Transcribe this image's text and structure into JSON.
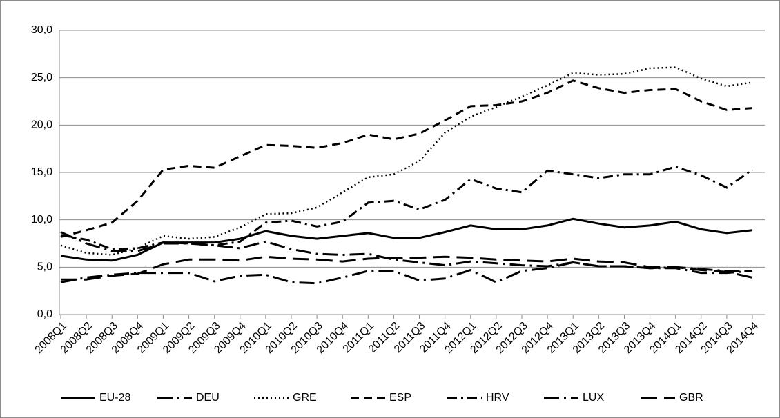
{
  "chart_data": {
    "type": "line",
    "categories": [
      "2008Q1",
      "2008Q2",
      "2008Q3",
      "2008Q4",
      "2009Q1",
      "2009Q2",
      "2009Q3",
      "2009Q4",
      "2010Q1",
      "2010Q2",
      "2010Q3",
      "2010Q4",
      "2011Q1",
      "2011Q2",
      "2011Q3",
      "2011Q4",
      "2012Q1",
      "2012Q2",
      "2012Q3",
      "2012Q4",
      "2013Q1",
      "2013Q2",
      "2013Q3",
      "2013Q4",
      "2014Q1",
      "2014Q2",
      "2014Q3",
      "2014Q4"
    ],
    "series": [
      {
        "name": "EU-28",
        "color": "#000000",
        "dash": "solid",
        "values": [
          6.2,
          5.8,
          5.7,
          6.3,
          7.6,
          7.6,
          7.6,
          8.0,
          8.8,
          8.3,
          8.0,
          8.3,
          8.6,
          8.1,
          8.1,
          8.7,
          9.4,
          9.0,
          9.0,
          9.4,
          10.1,
          9.6,
          9.2,
          9.4,
          9.8,
          9.0,
          8.6,
          8.9
        ]
      },
      {
        "name": "DEU",
        "color": "#000000",
        "dash": "long-dash-dot",
        "values": [
          8.7,
          7.5,
          6.7,
          6.7,
          7.5,
          7.5,
          7.3,
          7.0,
          7.7,
          6.9,
          6.4,
          6.3,
          6.4,
          5.8,
          5.5,
          5.2,
          5.6,
          5.4,
          5.2,
          5.1,
          5.5,
          5.1,
          5.1,
          4.9,
          5.0,
          4.8,
          4.6,
          4.6
        ]
      },
      {
        "name": "GRE",
        "color": "#000000",
        "dash": "dot",
        "values": [
          7.3,
          6.5,
          6.3,
          7.0,
          8.3,
          8.0,
          8.2,
          9.2,
          10.6,
          10.7,
          11.3,
          12.9,
          14.5,
          14.8,
          16.2,
          19.2,
          20.9,
          21.9,
          23.0,
          24.2,
          25.5,
          25.3,
          25.4,
          26.0,
          26.1,
          24.9,
          24.1,
          24.5
        ]
      },
      {
        "name": "ESP",
        "color": "#000000",
        "dash": "dash",
        "values": [
          8.2,
          8.9,
          9.7,
          12.0,
          15.3,
          15.7,
          15.5,
          16.7,
          17.9,
          17.8,
          17.6,
          18.1,
          19.0,
          18.5,
          19.1,
          20.5,
          22.0,
          22.1,
          22.5,
          23.4,
          24.7,
          23.9,
          23.4,
          23.7,
          23.8,
          22.5,
          21.6,
          21.8
        ]
      },
      {
        "name": "HRV",
        "color": "#000000",
        "dash": "dash-dot",
        "values": [
          8.4,
          7.9,
          6.9,
          7.0,
          7.6,
          7.5,
          7.3,
          7.7,
          9.7,
          9.9,
          9.3,
          9.8,
          11.8,
          12.0,
          11.1,
          12.1,
          14.3,
          13.3,
          12.9,
          15.2,
          14.8,
          14.4,
          14.8,
          14.8,
          15.6,
          14.7,
          13.4,
          15.3
        ]
      },
      {
        "name": "LUX",
        "color": "#000000",
        "dash": "long-dash-dot",
        "values": [
          3.4,
          3.9,
          4.2,
          4.4,
          4.4,
          4.4,
          3.5,
          4.1,
          4.2,
          3.4,
          3.3,
          3.9,
          4.6,
          4.6,
          3.6,
          3.8,
          4.7,
          3.4,
          4.6,
          4.9,
          5.5,
          5.1,
          5.1,
          4.9,
          4.9,
          4.4,
          4.4,
          4.6
        ]
      },
      {
        "name": "GBR",
        "color": "#000000",
        "dash": "long-dash",
        "values": [
          3.7,
          3.7,
          4.1,
          4.3,
          5.3,
          5.8,
          5.8,
          5.7,
          6.1,
          5.9,
          5.8,
          5.6,
          5.9,
          6.0,
          6.0,
          6.1,
          6.0,
          5.8,
          5.7,
          5.6,
          5.9,
          5.6,
          5.5,
          5.0,
          5.0,
          4.7,
          4.5,
          3.9
        ]
      }
    ],
    "ylim": [
      0,
      30
    ],
    "yticks": [
      {
        "value": 0,
        "label": "0,0"
      },
      {
        "value": 5,
        "label": "5,0"
      },
      {
        "value": 10,
        "label": "10,0"
      },
      {
        "value": 15,
        "label": "15,0"
      },
      {
        "value": 20,
        "label": "20,0"
      },
      {
        "value": 25,
        "label": "25,0"
      },
      {
        "value": 30,
        "label": "30,0"
      }
    ],
    "grid": true,
    "legend": "bottom"
  }
}
